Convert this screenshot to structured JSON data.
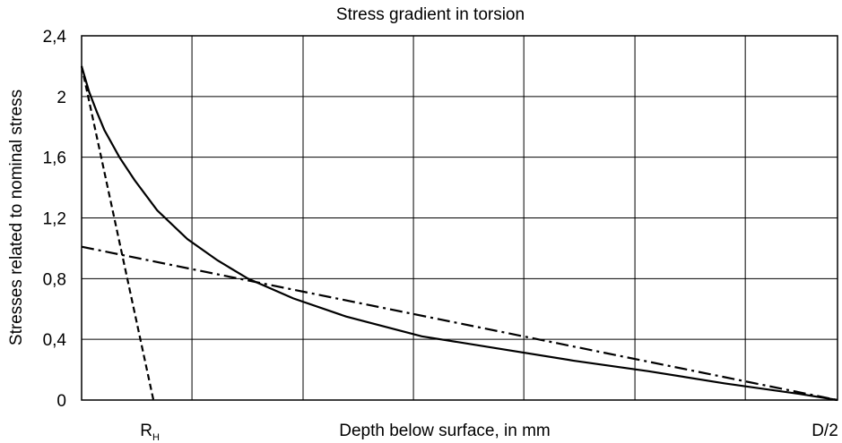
{
  "chart_data": {
    "type": "line",
    "title": "Stress gradient in torsion",
    "xlabel": "Depth below surface, in mm",
    "ylabel": "Stresses related to nominal stress",
    "xlim": [
      0,
      100
    ],
    "ylim": [
      0,
      2.4
    ],
    "grid": true,
    "y_ticks": [
      {
        "value": 0,
        "label": "0"
      },
      {
        "value": 0.4,
        "label": "0,4"
      },
      {
        "value": 0.8,
        "label": "0,8"
      },
      {
        "value": 1.2,
        "label": "1,2"
      },
      {
        "value": 1.6,
        "label": "1,6"
      },
      {
        "value": 2.0,
        "label": "2"
      },
      {
        "value": 2.4,
        "label": "2,4"
      }
    ],
    "x_grid": [
      0,
      14.6,
      29.3,
      43.9,
      58.5,
      73.2,
      87.8,
      100
    ],
    "x_markers": [
      {
        "value": 9.5,
        "label": "R",
        "sub": "H"
      },
      {
        "value": 100,
        "label": "D/2"
      }
    ],
    "series": [
      {
        "style": "solid",
        "color": "#000000",
        "points": [
          [
            0,
            2.2
          ],
          [
            1,
            2.03
          ],
          [
            2,
            1.9
          ],
          [
            3,
            1.78
          ],
          [
            5,
            1.6
          ],
          [
            7,
            1.45
          ],
          [
            10,
            1.25
          ],
          [
            14,
            1.06
          ],
          [
            18,
            0.92
          ],
          [
            22,
            0.8
          ],
          [
            28,
            0.67
          ],
          [
            35,
            0.55
          ],
          [
            45,
            0.42
          ],
          [
            55,
            0.34
          ],
          [
            65,
            0.26
          ],
          [
            75,
            0.19
          ],
          [
            85,
            0.11
          ],
          [
            95,
            0.04
          ],
          [
            100,
            0.0
          ]
        ]
      },
      {
        "style": "dashed",
        "color": "#000000",
        "points": [
          [
            0,
            2.2
          ],
          [
            9.5,
            0.0
          ]
        ]
      },
      {
        "style": "dash-dot",
        "color": "#000000",
        "points": [
          [
            0,
            1.01
          ],
          [
            100,
            0.0
          ]
        ]
      }
    ]
  }
}
